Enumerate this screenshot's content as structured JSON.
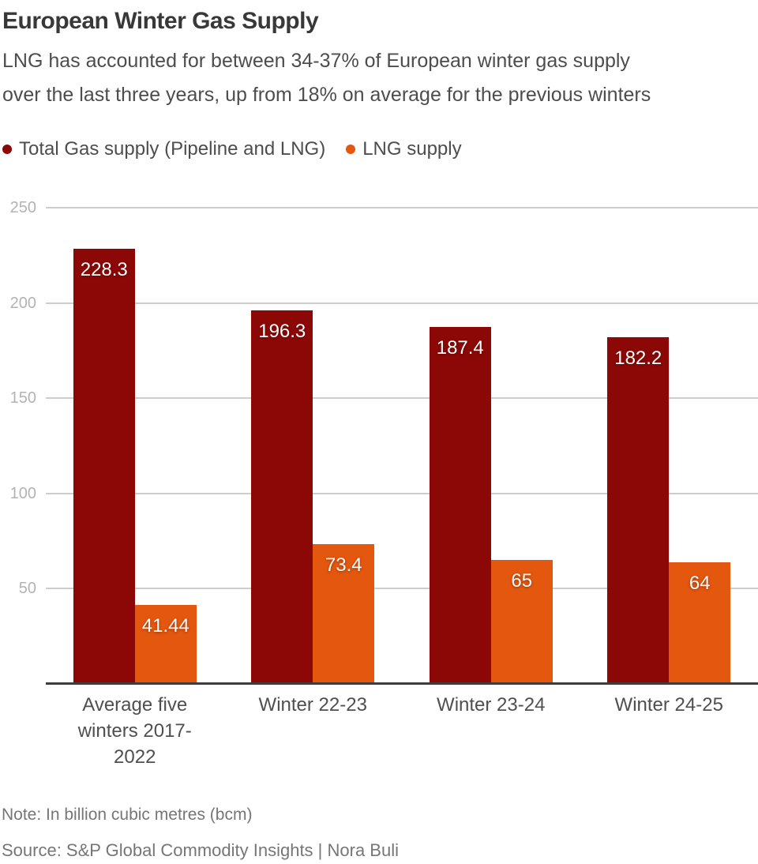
{
  "header": {
    "title": "European Winter Gas Supply",
    "subtitle": "LNG has accounted for between 34-37% of European winter gas supply over the last three years, up from 18% on average for the previous winters",
    "subtitle_lines": [
      "LNG has accounted for between 34-37% of European winter gas supply",
      "over the last three years, up from 18% on average for the previous winters"
    ]
  },
  "chart_data": {
    "type": "bar",
    "categories": [
      "Average five winters 2017-2022",
      "Winter 22-23",
      "Winter 23-24",
      "Winter 24-25"
    ],
    "series": [
      {
        "name": "Total Gas supply (Pipeline and LNG)",
        "color": "#8b0807",
        "values": [
          228.3,
          196.3,
          187.4,
          182.2
        ],
        "labels": [
          "228.3",
          "196.3",
          "187.4",
          "182.2"
        ]
      },
      {
        "name": "LNG supply",
        "color": "#e4570e",
        "values": [
          41.44,
          73.4,
          65,
          64
        ],
        "labels": [
          "41.44",
          "73.4",
          "65",
          "64"
        ]
      }
    ],
    "yticks": [
      250,
      200,
      150,
      100,
      50
    ],
    "ylim": [
      0,
      250
    ],
    "grid": true,
    "legend_position": "top",
    "value_labels": "inside-top",
    "title": "European Winter Gas Supply",
    "xlabel": "",
    "ylabel": ""
  },
  "footer": {
    "note": "Note: In billion cubic metres (bcm)",
    "source": "Source: S&P Global Commodity Insights | Nora Buli"
  },
  "colors": {
    "total_series": "#8b0807",
    "lng_series": "#e4570e",
    "gridline": "#cdcdcd",
    "axis_line": "#3d3d3d",
    "tick_label": "#b3b3b3",
    "title_text": "#383838",
    "body_text": "#4d4d4d",
    "footer_text": "#767676",
    "background": "#ffffff"
  }
}
